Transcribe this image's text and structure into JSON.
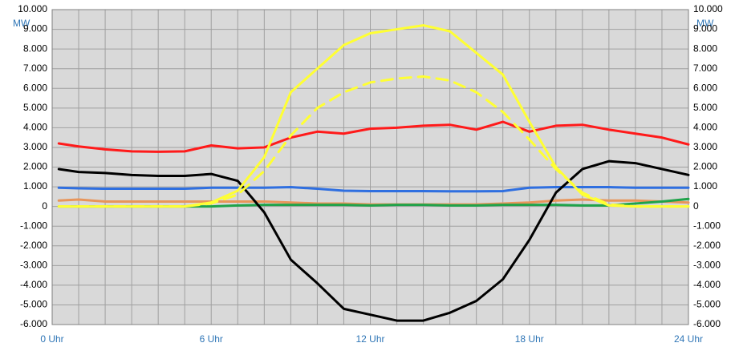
{
  "chart_data": {
    "type": "line",
    "ylabel": "MW",
    "x": [
      0.25,
      1,
      2,
      3,
      4,
      5,
      6,
      7,
      8,
      9,
      10,
      11,
      12,
      13,
      14,
      15,
      16,
      17,
      18,
      19,
      20,
      21,
      22,
      23,
      24
    ],
    "xlim": [
      0,
      24
    ],
    "xticks": [
      {
        "value": 0,
        "label": "0 Uhr"
      },
      {
        "value": 6,
        "label": "6 Uhr"
      },
      {
        "value": 12,
        "label": "12 Uhr"
      },
      {
        "value": 18,
        "label": "18 Uhr"
      },
      {
        "value": 24,
        "label": "24 Uhr"
      }
    ],
    "x_gridlines": [
      0,
      1,
      2,
      3,
      4,
      5,
      6,
      7,
      8,
      9,
      10,
      11,
      12,
      13,
      14,
      15,
      16,
      17,
      18,
      19,
      20,
      21,
      22,
      23,
      24
    ],
    "ylim": [
      -6000,
      10000
    ],
    "yticks": [
      {
        "value": 10000,
        "label": "10.000"
      },
      {
        "value": 9000,
        "label": "9.000"
      },
      {
        "value": 8000,
        "label": "8.000"
      },
      {
        "value": 7000,
        "label": "7.000"
      },
      {
        "value": 6000,
        "label": "6.000"
      },
      {
        "value": 5000,
        "label": "5.000"
      },
      {
        "value": 4000,
        "label": "4.000"
      },
      {
        "value": 3000,
        "label": "3.000"
      },
      {
        "value": 2000,
        "label": "2.000"
      },
      {
        "value": 1000,
        "label": "1.000"
      },
      0,
      {
        "value": -1000,
        "label": "-1.000"
      },
      {
        "value": -2000,
        "label": "-2.000"
      },
      {
        "value": -3000,
        "label": "-3.000"
      },
      {
        "value": -4000,
        "label": "-4.000"
      },
      {
        "value": -5000,
        "label": "-5.000"
      },
      {
        "value": -6000,
        "label": "-6.000"
      }
    ],
    "grid": true,
    "series": [
      {
        "color": "#e8955a",
        "values": [
          300,
          350,
          250,
          250,
          250,
          250,
          250,
          250,
          250,
          200,
          150,
          150,
          100,
          100,
          100,
          100,
          100,
          150,
          200,
          300,
          350,
          300,
          300,
          250,
          200
        ]
      },
      {
        "color": "#1fa34a",
        "values": [
          0,
          0,
          0,
          0,
          0,
          0,
          0,
          50,
          80,
          80,
          80,
          80,
          50,
          80,
          80,
          50,
          50,
          80,
          80,
          80,
          50,
          50,
          150,
          250,
          380
        ]
      },
      {
        "color": "#2f6fe0",
        "values": [
          950,
          920,
          900,
          900,
          900,
          900,
          950,
          950,
          950,
          980,
          900,
          800,
          780,
          780,
          780,
          770,
          770,
          780,
          950,
          980,
          980,
          980,
          950,
          950,
          950
        ]
      },
      {
        "color": "#ff1a1a",
        "values": [
          3200,
          3050,
          2900,
          2800,
          2780,
          2800,
          3100,
          2950,
          3000,
          3500,
          3800,
          3700,
          3950,
          4000,
          4100,
          4150,
          3900,
          4300,
          3800,
          4100,
          4150,
          3900,
          3700,
          3500,
          3150
        ]
      },
      {
        "color": "#000000",
        "values": [
          1900,
          1750,
          1700,
          1600,
          1550,
          1550,
          1650,
          1300,
          -300,
          -2700,
          -3900,
          -5200,
          -5500,
          -5800,
          -5800,
          -5400,
          -4800,
          -3700,
          -1700,
          700,
          1900,
          2300,
          2200,
          1900,
          1600
        ]
      },
      {
        "color": "#ffff33",
        "dash": true,
        "values": [
          0,
          0,
          0,
          0,
          0,
          0,
          150,
          600,
          1800,
          3600,
          5000,
          5800,
          6300,
          6500,
          6600,
          6400,
          5800,
          4800,
          3400,
          1900,
          700,
          100,
          0,
          0,
          0
        ]
      },
      {
        "color": "#ffff33",
        "values": [
          0,
          0,
          0,
          0,
          0,
          0,
          200,
          800,
          2500,
          5800,
          7000,
          8200,
          8800,
          9000,
          9200,
          8900,
          7800,
          6700,
          4300,
          2000,
          600,
          50,
          0,
          0,
          0
        ]
      }
    ]
  }
}
